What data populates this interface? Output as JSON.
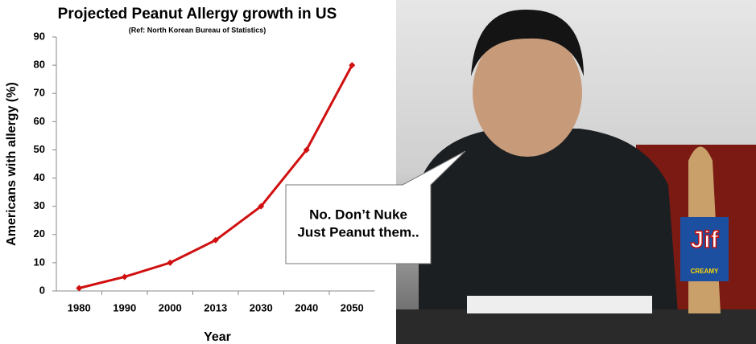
{
  "chart_data": {
    "type": "line",
    "title": "Projected Peanut Allergy growth in US",
    "subtitle": "(Ref: North Korean Bureau of Statistics)",
    "x_label": "Year",
    "y_label": "Americans with allergy (%)",
    "categories": [
      "1980",
      "1990",
      "2000",
      "2013",
      "2030",
      "2040",
      "2050"
    ],
    "values": [
      1,
      5,
      10,
      18,
      30,
      50,
      80
    ],
    "color": "#d01010",
    "ylim": [
      0,
      90
    ],
    "yticks": [
      0,
      10,
      20,
      30,
      40,
      50,
      60,
      70,
      80,
      90
    ],
    "grid": false
  },
  "photo": {
    "speech_bubble": [
      "No. Don’t Nuke",
      "Just Peanut them.."
    ],
    "jar_label": "Jif",
    "jar_sublabel": "CREAMY"
  }
}
